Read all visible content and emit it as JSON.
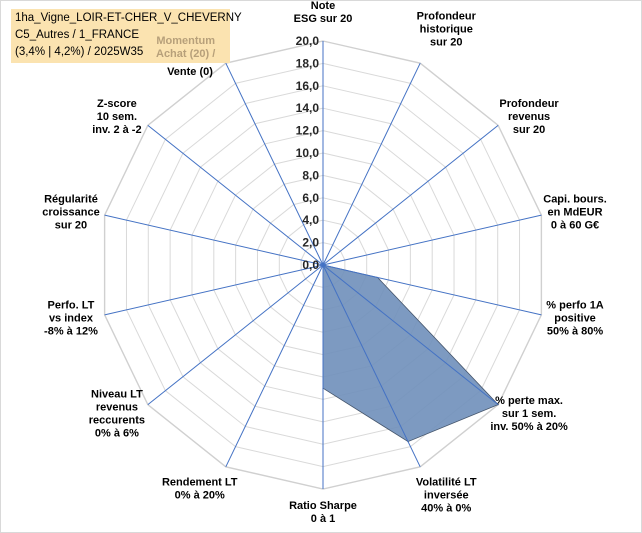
{
  "title_box": {
    "line1": "1ha_Vigne_LOIR-ET-CHER_V_CHEVERNY",
    "line2": "C5_Autres / 1_FRANCE",
    "line3": "(3,4% | 4,2%) / 2025W35"
  },
  "chart_data": {
    "type": "radar",
    "title": "1ha_Vigne_LOIR-ET-CHER_V_CHEVERNY",
    "rmin": 0,
    "rmax": 20,
    "tick_step": 2,
    "tick_labels": [
      "0,0",
      "2,0",
      "4,0",
      "6,0",
      "8,0",
      "10,0",
      "12,0",
      "14,0",
      "16,0",
      "18,0",
      "20,0"
    ],
    "grid": true,
    "fill_color": "#6f8fba",
    "fill_opacity": 0.9,
    "line_color": "#4472c4",
    "grid_color": "#d9d9d9",
    "categories": [
      [
        "Note",
        "ESG sur 20"
      ],
      [
        "Profondeur",
        "historique",
        "sur 20"
      ],
      [
        "Profondeur",
        "revenus",
        "sur 20"
      ],
      [
        "Capi. bours.",
        "en MdEUR",
        "0 à 60 G€"
      ],
      [
        "% perfo 1A",
        "positive",
        "50% à 80%"
      ],
      [
        "% perte max.",
        "sur 1 sem.",
        "inv. 50% à 20%"
      ],
      [
        "Volatilité LT",
        "inversée",
        "40% à 0%"
      ],
      [
        "Ratio Sharpe",
        "0 à 1"
      ],
      [
        "Rendement LT",
        "0% à 20%"
      ],
      [
        "Niveau LT",
        "revenus",
        "reccurents",
        "0% à 6%"
      ],
      [
        "Perfo. LT",
        "vs index",
        "-8% à 12%"
      ],
      [
        "Régularité",
        "croissance",
        "sur 20"
      ],
      [
        "Z-score",
        "10 sem.",
        "inv. 2 à -2"
      ],
      [
        "Momentum",
        "Achat (20) /",
        "Vente (0)"
      ]
    ],
    "values": [
      0,
      0,
      0,
      0,
      5,
      20,
      17.5,
      0,
      0,
      0,
      0,
      0,
      0,
      0
    ],
    "center_values": [
      0,
      0,
      0,
      0,
      0,
      0,
      0,
      11,
      0,
      0,
      0,
      0,
      0,
      0
    ]
  }
}
